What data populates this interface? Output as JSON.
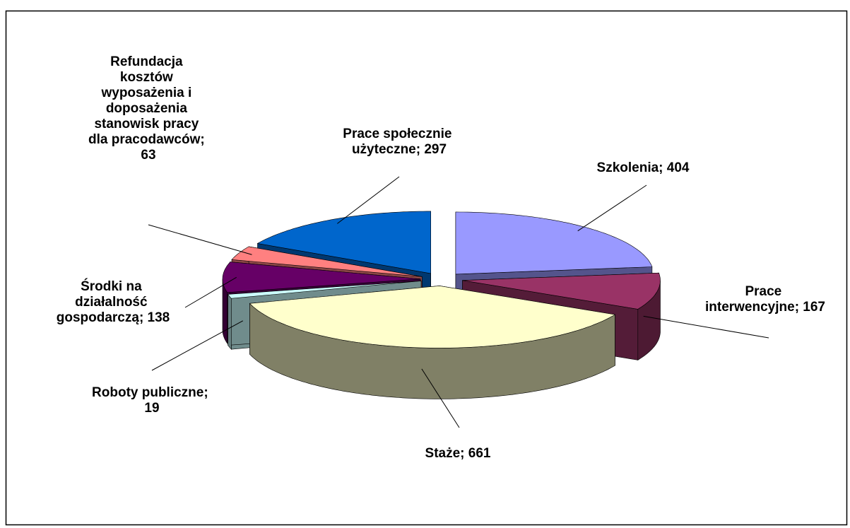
{
  "chart_data": {
    "type": "pie3d",
    "categories": [
      "Szkolenia",
      "Prace interwencyjne",
      "Staże",
      "Roboty publiczne",
      "Środki na działalność gospodarczą",
      "Refundacja kosztów wyposażenia i doposażenia stanowisk pracy dla pracodawców",
      "Prace społecznie użyteczne"
    ],
    "values": [
      404,
      167,
      661,
      19,
      138,
      63,
      297
    ],
    "value_labels": [
      "Szkolenia; 404",
      "Prace interwencyjne; 167",
      "Staże; 661",
      "Roboty publiczne; 19",
      "Środki na działalność gospodarczą; 138",
      "Refundacja kosztów wyposażenia i doposażenia stanowisk pracy dla pracodawców; 63",
      "Prace społecznie użyteczne; 297"
    ],
    "colors": [
      "#9999ff",
      "#993366",
      "#ffffcc",
      "#ccffff",
      "#660066",
      "#ff8080",
      "#0066cc"
    ]
  }
}
